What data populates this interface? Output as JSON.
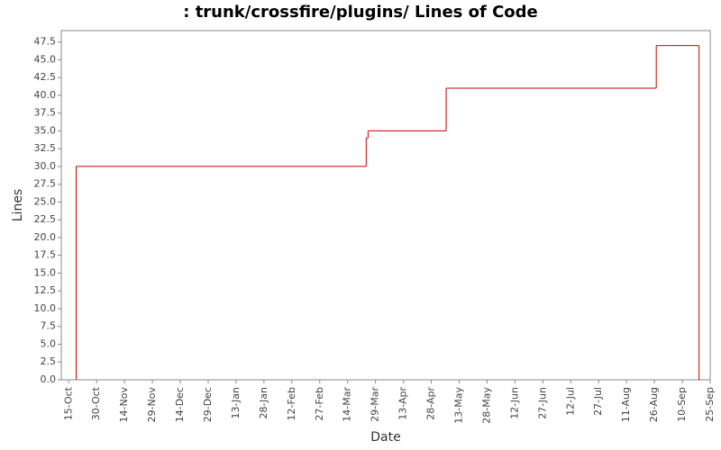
{
  "chart_data": {
    "type": "step",
    "title": ": trunk/crossfire/plugins/ Lines of Code",
    "x_label": "Date",
    "y_label": "Lines",
    "x": [
      "19-Oct",
      "19-Oct",
      "24-Mar",
      "25-Mar",
      "6-May",
      "27-Aug",
      "19-Sep"
    ],
    "series": [
      {
        "name": "Lines",
        "color": "#cc0000",
        "values": [
          0,
          30,
          34,
          35,
          41,
          47,
          0
        ]
      }
    ],
    "xlim": [
      "11-Oct",
      "25-Sep"
    ],
    "xticks": [
      "15-Oct",
      "30-Oct",
      "14-Nov",
      "29-Nov",
      "14-Dec",
      "29-Dec",
      "13-Jan",
      "28-Jan",
      "12-Feb",
      "27-Feb",
      "14-Mar",
      "29-Mar",
      "13-Apr",
      "28-Apr",
      "13-May",
      "28-May",
      "12-Jun",
      "27-Jun",
      "12-Jul",
      "27-Jul",
      "11-Aug",
      "26-Aug",
      "10-Sep",
      "25-Sep"
    ],
    "ylim": [
      0,
      49.1
    ],
    "yticks": [
      {
        "value": 0,
        "label": "0.0"
      },
      {
        "value": 2.5,
        "label": "2.5"
      },
      {
        "value": 5,
        "label": "5.0"
      },
      {
        "value": 7.5,
        "label": "7.5"
      },
      {
        "value": 10,
        "label": "10.0"
      },
      {
        "value": 12.5,
        "label": "12.5"
      },
      {
        "value": 15,
        "label": "15.0"
      },
      {
        "value": 17.5,
        "label": "17.5"
      },
      {
        "value": 20,
        "label": "20.0"
      },
      {
        "value": 22.5,
        "label": "22.5"
      },
      {
        "value": 25,
        "label": "25.0"
      },
      {
        "value": 27.5,
        "label": "27.5"
      },
      {
        "value": 30,
        "label": "30.0"
      },
      {
        "value": 32.5,
        "label": "32.5"
      },
      {
        "value": 35,
        "label": "35.0"
      },
      {
        "value": 37.5,
        "label": "37.5"
      },
      {
        "value": 40,
        "label": "40.0"
      },
      {
        "value": 42.5,
        "label": "42.5"
      },
      {
        "value": 45,
        "label": "45.0"
      },
      {
        "value": 47.5,
        "label": "47.5"
      }
    ],
    "grid": false
  }
}
